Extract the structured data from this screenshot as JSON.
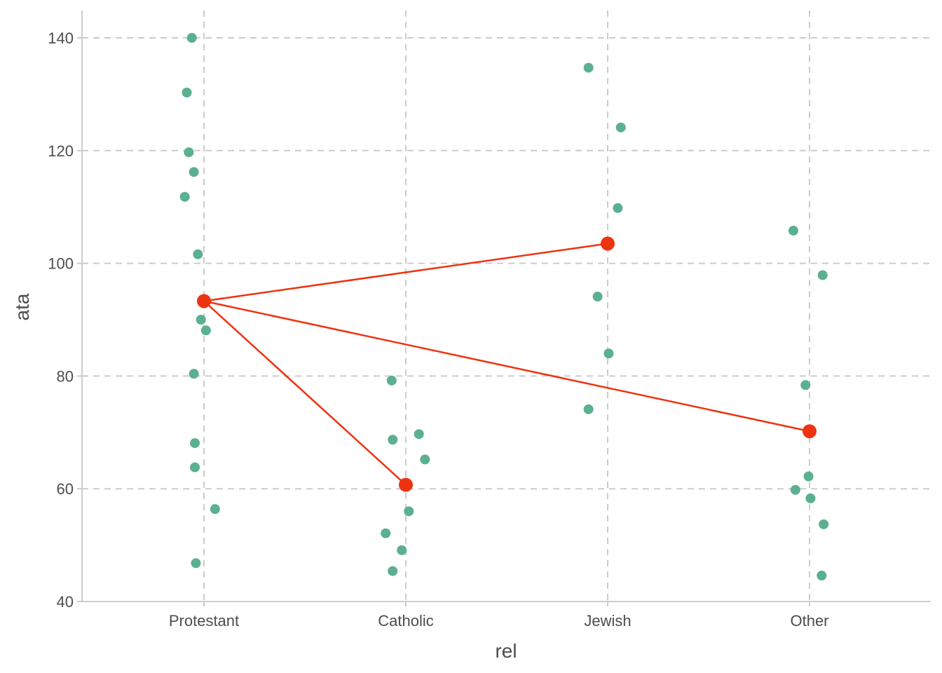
{
  "chart_data": {
    "type": "scatter",
    "xlabel": "rel",
    "ylabel": "ata",
    "categories": [
      "Protestant",
      "Catholic",
      "Jewish",
      "Other"
    ],
    "ylim": [
      40,
      145
    ],
    "yticks": [
      40,
      60,
      80,
      100,
      120,
      140
    ],
    "grid": true,
    "colors": {
      "points": "#5ab08f",
      "means": "#ee3311",
      "grid": "#cccccc",
      "axis": "#cccccc"
    },
    "points": [
      {
        "category": "Protestant",
        "jitter": -0.06,
        "y": 140
      },
      {
        "category": "Protestant",
        "jitter": -0.085,
        "y": 130.3
      },
      {
        "category": "Protestant",
        "jitter": -0.075,
        "y": 119.7
      },
      {
        "category": "Protestant",
        "jitter": -0.05,
        "y": 116.2
      },
      {
        "category": "Protestant",
        "jitter": -0.095,
        "y": 111.8
      },
      {
        "category": "Protestant",
        "jitter": -0.03,
        "y": 101.6
      },
      {
        "category": "Protestant",
        "jitter": -0.015,
        "y": 90.0
      },
      {
        "category": "Protestant",
        "jitter": 0.01,
        "y": 88.1
      },
      {
        "category": "Protestant",
        "jitter": -0.05,
        "y": 80.4
      },
      {
        "category": "Protestant",
        "jitter": -0.045,
        "y": 68.1
      },
      {
        "category": "Protestant",
        "jitter": -0.045,
        "y": 63.8
      },
      {
        "category": "Protestant",
        "jitter": 0.055,
        "y": 56.4
      },
      {
        "category": "Protestant",
        "jitter": -0.04,
        "y": 46.8
      },
      {
        "category": "Catholic",
        "jitter": -0.07,
        "y": 79.2
      },
      {
        "category": "Catholic",
        "jitter": -0.065,
        "y": 68.7
      },
      {
        "category": "Catholic",
        "jitter": 0.065,
        "y": 69.7
      },
      {
        "category": "Catholic",
        "jitter": 0.095,
        "y": 65.2
      },
      {
        "category": "Catholic",
        "jitter": 0.015,
        "y": 56.0
      },
      {
        "category": "Catholic",
        "jitter": -0.1,
        "y": 52.1
      },
      {
        "category": "Catholic",
        "jitter": -0.02,
        "y": 49.1
      },
      {
        "category": "Catholic",
        "jitter": -0.065,
        "y": 45.4
      },
      {
        "category": "Jewish",
        "jitter": -0.095,
        "y": 134.7
      },
      {
        "category": "Jewish",
        "jitter": 0.065,
        "y": 124.1
      },
      {
        "category": "Jewish",
        "jitter": 0.05,
        "y": 109.8
      },
      {
        "category": "Jewish",
        "jitter": -0.05,
        "y": 94.1
      },
      {
        "category": "Jewish",
        "jitter": 0.005,
        "y": 84.0
      },
      {
        "category": "Jewish",
        "jitter": -0.095,
        "y": 74.1
      },
      {
        "category": "Other",
        "jitter": -0.08,
        "y": 105.8
      },
      {
        "category": "Other",
        "jitter": 0.065,
        "y": 97.9
      },
      {
        "category": "Other",
        "jitter": -0.02,
        "y": 78.4
      },
      {
        "category": "Other",
        "jitter": -0.005,
        "y": 62.2
      },
      {
        "category": "Other",
        "jitter": -0.07,
        "y": 59.8
      },
      {
        "category": "Other",
        "jitter": 0.005,
        "y": 58.3
      },
      {
        "category": "Other",
        "jitter": 0.07,
        "y": 53.7
      },
      {
        "category": "Other",
        "jitter": 0.06,
        "y": 44.6
      }
    ],
    "means": [
      {
        "category": "Protestant",
        "y": 93.3
      },
      {
        "category": "Catholic",
        "y": 60.7
      },
      {
        "category": "Jewish",
        "y": 103.5
      },
      {
        "category": "Other",
        "y": 70.2
      }
    ],
    "connections": [
      [
        "Protestant",
        "Catholic"
      ],
      [
        "Protestant",
        "Jewish"
      ],
      [
        "Protestant",
        "Other"
      ]
    ]
  }
}
